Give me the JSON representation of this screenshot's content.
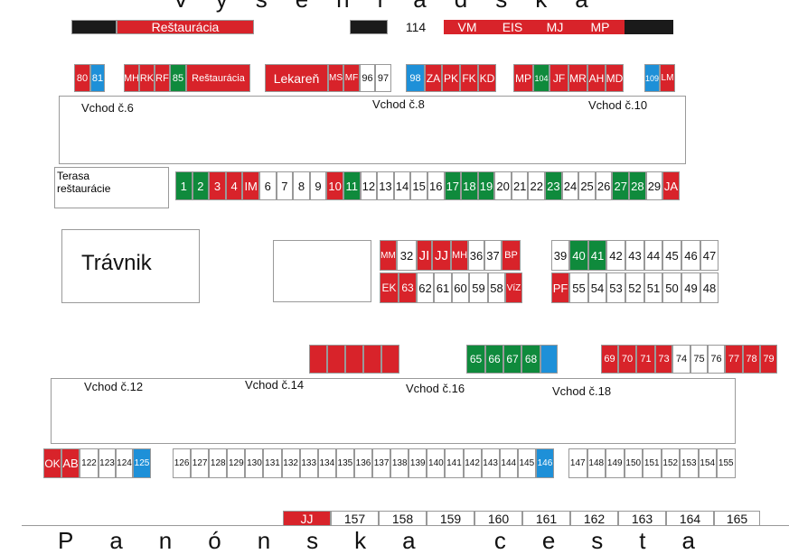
{
  "streets": {
    "top": "Vyšehradská",
    "bottom": "Panónska cesta"
  },
  "top_bar_left": {
    "label": "Reštaurácia"
  },
  "top_bar_right": {
    "items": [
      "114",
      "VM",
      "EIS",
      "MJ",
      "MP"
    ]
  },
  "upper_stalls": [
    {
      "t": "80",
      "c": "red"
    },
    {
      "t": "81",
      "c": "blue"
    },
    {
      "t": "MH",
      "c": "red"
    },
    {
      "t": "RK",
      "c": "red"
    },
    {
      "t": "RF",
      "c": "red"
    },
    {
      "t": "85",
      "c": "green"
    },
    {
      "t": "Reštaurácia",
      "c": "red"
    },
    {
      "t": "Lekareň",
      "c": "red"
    },
    {
      "t": "MS",
      "c": "red"
    },
    {
      "t": "MF",
      "c": "red"
    },
    {
      "t": "96",
      "c": "white"
    },
    {
      "t": "97",
      "c": "white"
    },
    {
      "t": "98",
      "c": "blue"
    },
    {
      "t": "ZA",
      "c": "red"
    },
    {
      "t": "PK",
      "c": "red"
    },
    {
      "t": "FK",
      "c": "red"
    },
    {
      "t": "KD",
      "c": "red"
    },
    {
      "t": "MP",
      "c": "red"
    },
    {
      "t": "104",
      "c": "green"
    },
    {
      "t": "JF",
      "c": "red"
    },
    {
      "t": "MR",
      "c": "red"
    },
    {
      "t": "AH",
      "c": "red"
    },
    {
      "t": "MD",
      "c": "red"
    },
    {
      "t": "109",
      "c": "blue"
    },
    {
      "t": "LM",
      "c": "red"
    }
  ],
  "entrances_top": [
    "Vchod č.6",
    "Vchod č.8",
    "Vchod č.10"
  ],
  "terrace": "Terasa reštaurácie",
  "row_1_to_ja": [
    {
      "t": "1",
      "c": "green"
    },
    {
      "t": "2",
      "c": "green"
    },
    {
      "t": "3",
      "c": "red"
    },
    {
      "t": "4",
      "c": "red"
    },
    {
      "t": "IM",
      "c": "red"
    },
    {
      "t": "6",
      "c": "white"
    },
    {
      "t": "7",
      "c": "white"
    },
    {
      "t": "8",
      "c": "white"
    },
    {
      "t": "9",
      "c": "white"
    },
    {
      "t": "10",
      "c": "red"
    },
    {
      "t": "11",
      "c": "green"
    },
    {
      "t": "12",
      "c": "white"
    },
    {
      "t": "13",
      "c": "white"
    },
    {
      "t": "14",
      "c": "white"
    },
    {
      "t": "15",
      "c": "white"
    },
    {
      "t": "16",
      "c": "white"
    },
    {
      "t": "17",
      "c": "green"
    },
    {
      "t": "18",
      "c": "green"
    },
    {
      "t": "19",
      "c": "green"
    },
    {
      "t": "20",
      "c": "white"
    },
    {
      "t": "21",
      "c": "white"
    },
    {
      "t": "22",
      "c": "white"
    },
    {
      "t": "23",
      "c": "green"
    },
    {
      "t": "24",
      "c": "white"
    },
    {
      "t": "25",
      "c": "white"
    },
    {
      "t": "26",
      "c": "white"
    },
    {
      "t": "27",
      "c": "green"
    },
    {
      "t": "28",
      "c": "green"
    },
    {
      "t": "29",
      "c": "white"
    },
    {
      "t": "JA",
      "c": "red"
    }
  ],
  "lawn": "Trávnik",
  "mid_a_top": [
    {
      "t": "MM",
      "c": "red"
    },
    {
      "t": "32",
      "c": "white"
    },
    {
      "t": "JI",
      "c": "red"
    },
    {
      "t": "JJ",
      "c": "red"
    },
    {
      "t": "MH",
      "c": "red"
    },
    {
      "t": "36",
      "c": "white"
    },
    {
      "t": "37",
      "c": "white"
    },
    {
      "t": "BP",
      "c": "red"
    }
  ],
  "mid_a_bottom": [
    {
      "t": "EK",
      "c": "red"
    },
    {
      "t": "63",
      "c": "red"
    },
    {
      "t": "62",
      "c": "white"
    },
    {
      "t": "61",
      "c": "white"
    },
    {
      "t": "60",
      "c": "white"
    },
    {
      "t": "59",
      "c": "white"
    },
    {
      "t": "58",
      "c": "white"
    },
    {
      "t": "VíZ",
      "c": "red"
    }
  ],
  "mid_b_top": [
    {
      "t": "39",
      "c": "white"
    },
    {
      "t": "40",
      "c": "green"
    },
    {
      "t": "41",
      "c": "green"
    },
    {
      "t": "42",
      "c": "white"
    },
    {
      "t": "43",
      "c": "white"
    },
    {
      "t": "44",
      "c": "white"
    },
    {
      "t": "45",
      "c": "white"
    },
    {
      "t": "46",
      "c": "white"
    },
    {
      "t": "47",
      "c": "white"
    }
  ],
  "mid_b_bottom": [
    {
      "t": "PF",
      "c": "red"
    },
    {
      "t": "55",
      "c": "white"
    },
    {
      "t": "54",
      "c": "white"
    },
    {
      "t": "53",
      "c": "white"
    },
    {
      "t": "52",
      "c": "white"
    },
    {
      "t": "51",
      "c": "white"
    },
    {
      "t": "50",
      "c": "white"
    },
    {
      "t": "49",
      "c": "white"
    },
    {
      "t": "48",
      "c": "white"
    }
  ],
  "lower_red_block": [
    {
      "t": "",
      "c": "red"
    },
    {
      "t": "",
      "c": "red"
    },
    {
      "t": "",
      "c": "red"
    },
    {
      "t": "",
      "c": "red"
    },
    {
      "t": "",
      "c": "red"
    }
  ],
  "lower_green_block": [
    {
      "t": "65",
      "c": "green"
    },
    {
      "t": "66",
      "c": "green"
    },
    {
      "t": "67",
      "c": "green"
    },
    {
      "t": "68",
      "c": "green"
    },
    {
      "t": "",
      "c": "blue"
    }
  ],
  "lower_right_block": [
    {
      "t": "69",
      "c": "red"
    },
    {
      "t": "70",
      "c": "red"
    },
    {
      "t": "71",
      "c": "red"
    },
    {
      "t": "73",
      "c": "red"
    },
    {
      "t": "74",
      "c": "white"
    },
    {
      "t": "75",
      "c": "white"
    },
    {
      "t": "76",
      "c": "white"
    },
    {
      "t": "77",
      "c": "red"
    },
    {
      "t": "78",
      "c": "red"
    },
    {
      "t": "79",
      "c": "red"
    }
  ],
  "entrances_bottom": [
    "Vchod č.12",
    "Vchod č.14",
    "Vchod č.16",
    "Vchod č.18"
  ],
  "row_ok": [
    {
      "t": "OK",
      "c": "red"
    },
    {
      "t": "AB",
      "c": "red"
    },
    {
      "t": "122",
      "c": "white"
    },
    {
      "t": "123",
      "c": "white"
    },
    {
      "t": "124",
      "c": "white"
    },
    {
      "t": "125",
      "c": "blue"
    }
  ],
  "row_126_146": [
    {
      "t": "126",
      "c": "white"
    },
    {
      "t": "127",
      "c": "white"
    },
    {
      "t": "128",
      "c": "white"
    },
    {
      "t": "129",
      "c": "white"
    },
    {
      "t": "130",
      "c": "white"
    },
    {
      "t": "131",
      "c": "white"
    },
    {
      "t": "132",
      "c": "white"
    },
    {
      "t": "133",
      "c": "white"
    },
    {
      "t": "134",
      "c": "white"
    },
    {
      "t": "135",
      "c": "white"
    },
    {
      "t": "136",
      "c": "white"
    },
    {
      "t": "137",
      "c": "white"
    },
    {
      "t": "138",
      "c": "white"
    },
    {
      "t": "139",
      "c": "white"
    },
    {
      "t": "140",
      "c": "white"
    },
    {
      "t": "141",
      "c": "white"
    },
    {
      "t": "142",
      "c": "white"
    },
    {
      "t": "143",
      "c": "white"
    },
    {
      "t": "144",
      "c": "white"
    },
    {
      "t": "145",
      "c": "white"
    },
    {
      "t": "146",
      "c": "blue"
    }
  ],
  "row_147_155": [
    {
      "t": "147",
      "c": "white"
    },
    {
      "t": "148",
      "c": "white"
    },
    {
      "t": "149",
      "c": "white"
    },
    {
      "t": "150",
      "c": "white"
    },
    {
      "t": "151",
      "c": "white"
    },
    {
      "t": "152",
      "c": "white"
    },
    {
      "t": "153",
      "c": "white"
    },
    {
      "t": "154",
      "c": "white"
    },
    {
      "t": "155",
      "c": "white"
    }
  ],
  "bottom_row": [
    {
      "t": "JJ",
      "c": "red"
    },
    {
      "t": "157",
      "c": "white"
    },
    {
      "t": "158",
      "c": "white"
    },
    {
      "t": "159",
      "c": "white"
    },
    {
      "t": "160",
      "c": "white"
    },
    {
      "t": "161",
      "c": "white"
    },
    {
      "t": "162",
      "c": "white"
    },
    {
      "t": "163",
      "c": "white"
    },
    {
      "t": "164",
      "c": "white"
    },
    {
      "t": "165",
      "c": "white"
    }
  ],
  "colors": {
    "red": "#d8232a",
    "green": "#0f8a3c",
    "blue": "#1e90d8",
    "black": "#1a1a1a"
  }
}
